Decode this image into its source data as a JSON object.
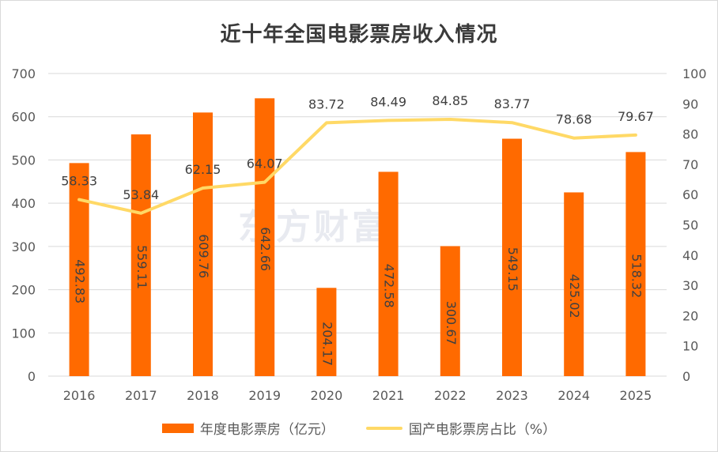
{
  "title": "近十年全国电影票房收入情况",
  "watermark": "东方财富",
  "colors": {
    "bar": "#ff6a00",
    "line": "#ffd966",
    "grid": "#d9d9d9"
  },
  "chart_data": {
    "type": "bar",
    "categories": [
      "2016",
      "2017",
      "2018",
      "2019",
      "2020",
      "2021",
      "2022",
      "2023",
      "2024",
      "2025"
    ],
    "series": [
      {
        "name": "年度电影票房（亿元）",
        "type": "bar",
        "axis": "left",
        "values": [
          492.83,
          559.11,
          609.76,
          642.66,
          204.17,
          472.58,
          300.67,
          549.15,
          425.02,
          518.32
        ]
      },
      {
        "name": "国产电影票房占比（%）",
        "type": "line",
        "axis": "right",
        "values": [
          58.33,
          53.84,
          62.15,
          64.07,
          83.72,
          84.49,
          84.85,
          83.77,
          78.68,
          79.67
        ]
      }
    ],
    "y_left": {
      "min": 0,
      "max": 700,
      "ticks": [
        0,
        100,
        200,
        300,
        400,
        500,
        600,
        700
      ]
    },
    "y_right": {
      "min": 0,
      "max": 100,
      "ticks": [
        0,
        10,
        20,
        30,
        40,
        50,
        60,
        70,
        80,
        90,
        100
      ]
    },
    "grid": true,
    "legend_position": "bottom"
  }
}
